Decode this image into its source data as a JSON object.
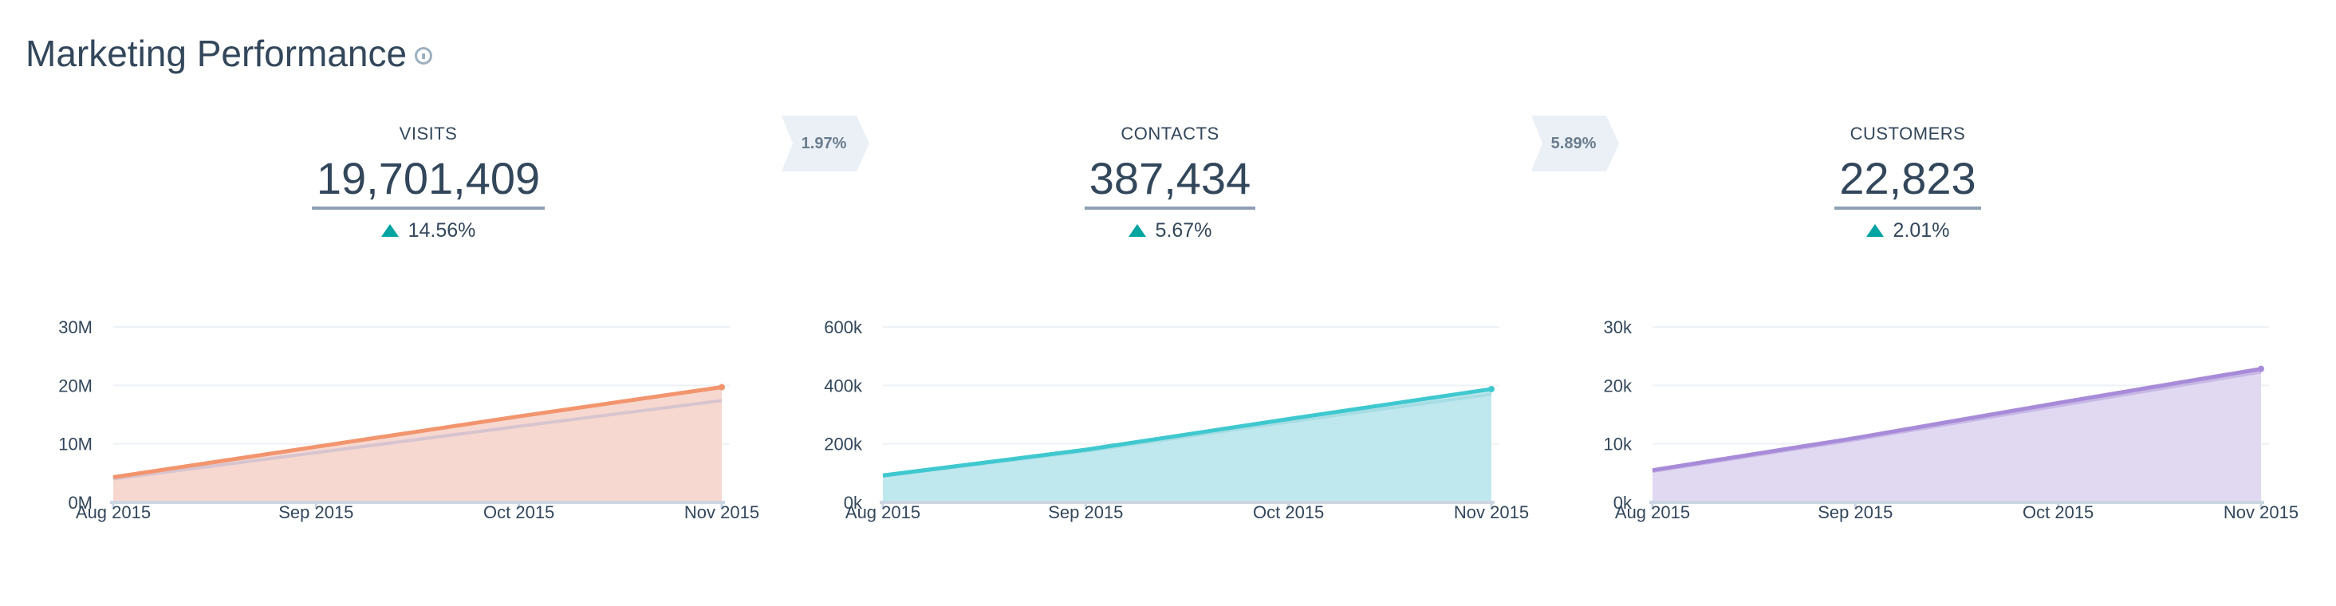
{
  "header": {
    "title": "Marketing Performance",
    "info_icon": "info-icon"
  },
  "metrics": [
    {
      "label": "VISITS",
      "value": "19,701,409",
      "change": "14.56%",
      "change_icon": "triangle-up-icon"
    },
    {
      "label": "CONTACTS",
      "value": "387,434",
      "change": "5.67%",
      "change_icon": "triangle-up-icon"
    },
    {
      "label": "CUSTOMERS",
      "value": "22,823",
      "change": "2.01%",
      "change_icon": "triangle-up-icon"
    }
  ],
  "conversion_rates": [
    {
      "value": "1.97%"
    },
    {
      "value": "5.89%"
    }
  ],
  "colors": {
    "text": "#33475b",
    "up_arrow": "#00a4a0",
    "rate_badge": "#eaf0f6",
    "visits_line": "#f2956e",
    "visits_fill": "#f6d8d0",
    "contacts_line": "#3fc8cf",
    "contacts_fill": "#bfe8ee",
    "customers_line": "#a78bd8",
    "customers_fill": "#e1d9f2",
    "previous_line": "#d8c4cf"
  },
  "chart_data": [
    {
      "type": "area",
      "name": "visits-chart",
      "x": [
        "Aug 2015",
        "Sep 2015",
        "Oct 2015",
        "Nov 2015"
      ],
      "yticks": [
        "0M",
        "10M",
        "20M",
        "30M"
      ],
      "ylim": [
        0,
        30000000
      ],
      "grid": true,
      "series": [
        {
          "values": [
            4300000,
            9500000,
            14700000,
            19701409
          ],
          "line_color": "#f2956e",
          "fill_color": "#f6d8d0"
        },
        {
          "values": [
            4000000,
            8500000,
            13000000,
            17400000
          ],
          "line_color": "#d8c4cf",
          "fill_color": "none"
        }
      ]
    },
    {
      "type": "area",
      "name": "contacts-chart",
      "x": [
        "Aug 2015",
        "Sep 2015",
        "Oct 2015",
        "Nov 2015"
      ],
      "yticks": [
        "0k",
        "200k",
        "400k",
        "600k"
      ],
      "ylim": [
        0,
        600000
      ],
      "grid": true,
      "series": [
        {
          "values": [
            92000,
            180000,
            285000,
            387434
          ],
          "line_color": "#3fc8cf",
          "fill_color": "#bfe8ee"
        },
        {
          "values": [
            90000,
            175000,
            275000,
            370000
          ],
          "line_color": "#a7dde3",
          "fill_color": "none"
        }
      ]
    },
    {
      "type": "area",
      "name": "customers-chart",
      "x": [
        "Aug 2015",
        "Sep 2015",
        "Oct 2015",
        "Nov 2015"
      ],
      "yticks": [
        "0k",
        "10k",
        "20k",
        "30k"
      ],
      "ylim": [
        0,
        30000
      ],
      "grid": true,
      "series": [
        {
          "values": [
            5500,
            11000,
            17000,
            22823
          ],
          "line_color": "#a78bd8",
          "fill_color": "#e1d9f2"
        },
        {
          "values": [
            5300,
            10700,
            16500,
            22300
          ],
          "line_color": "#c7b8e6",
          "fill_color": "none"
        }
      ]
    }
  ]
}
